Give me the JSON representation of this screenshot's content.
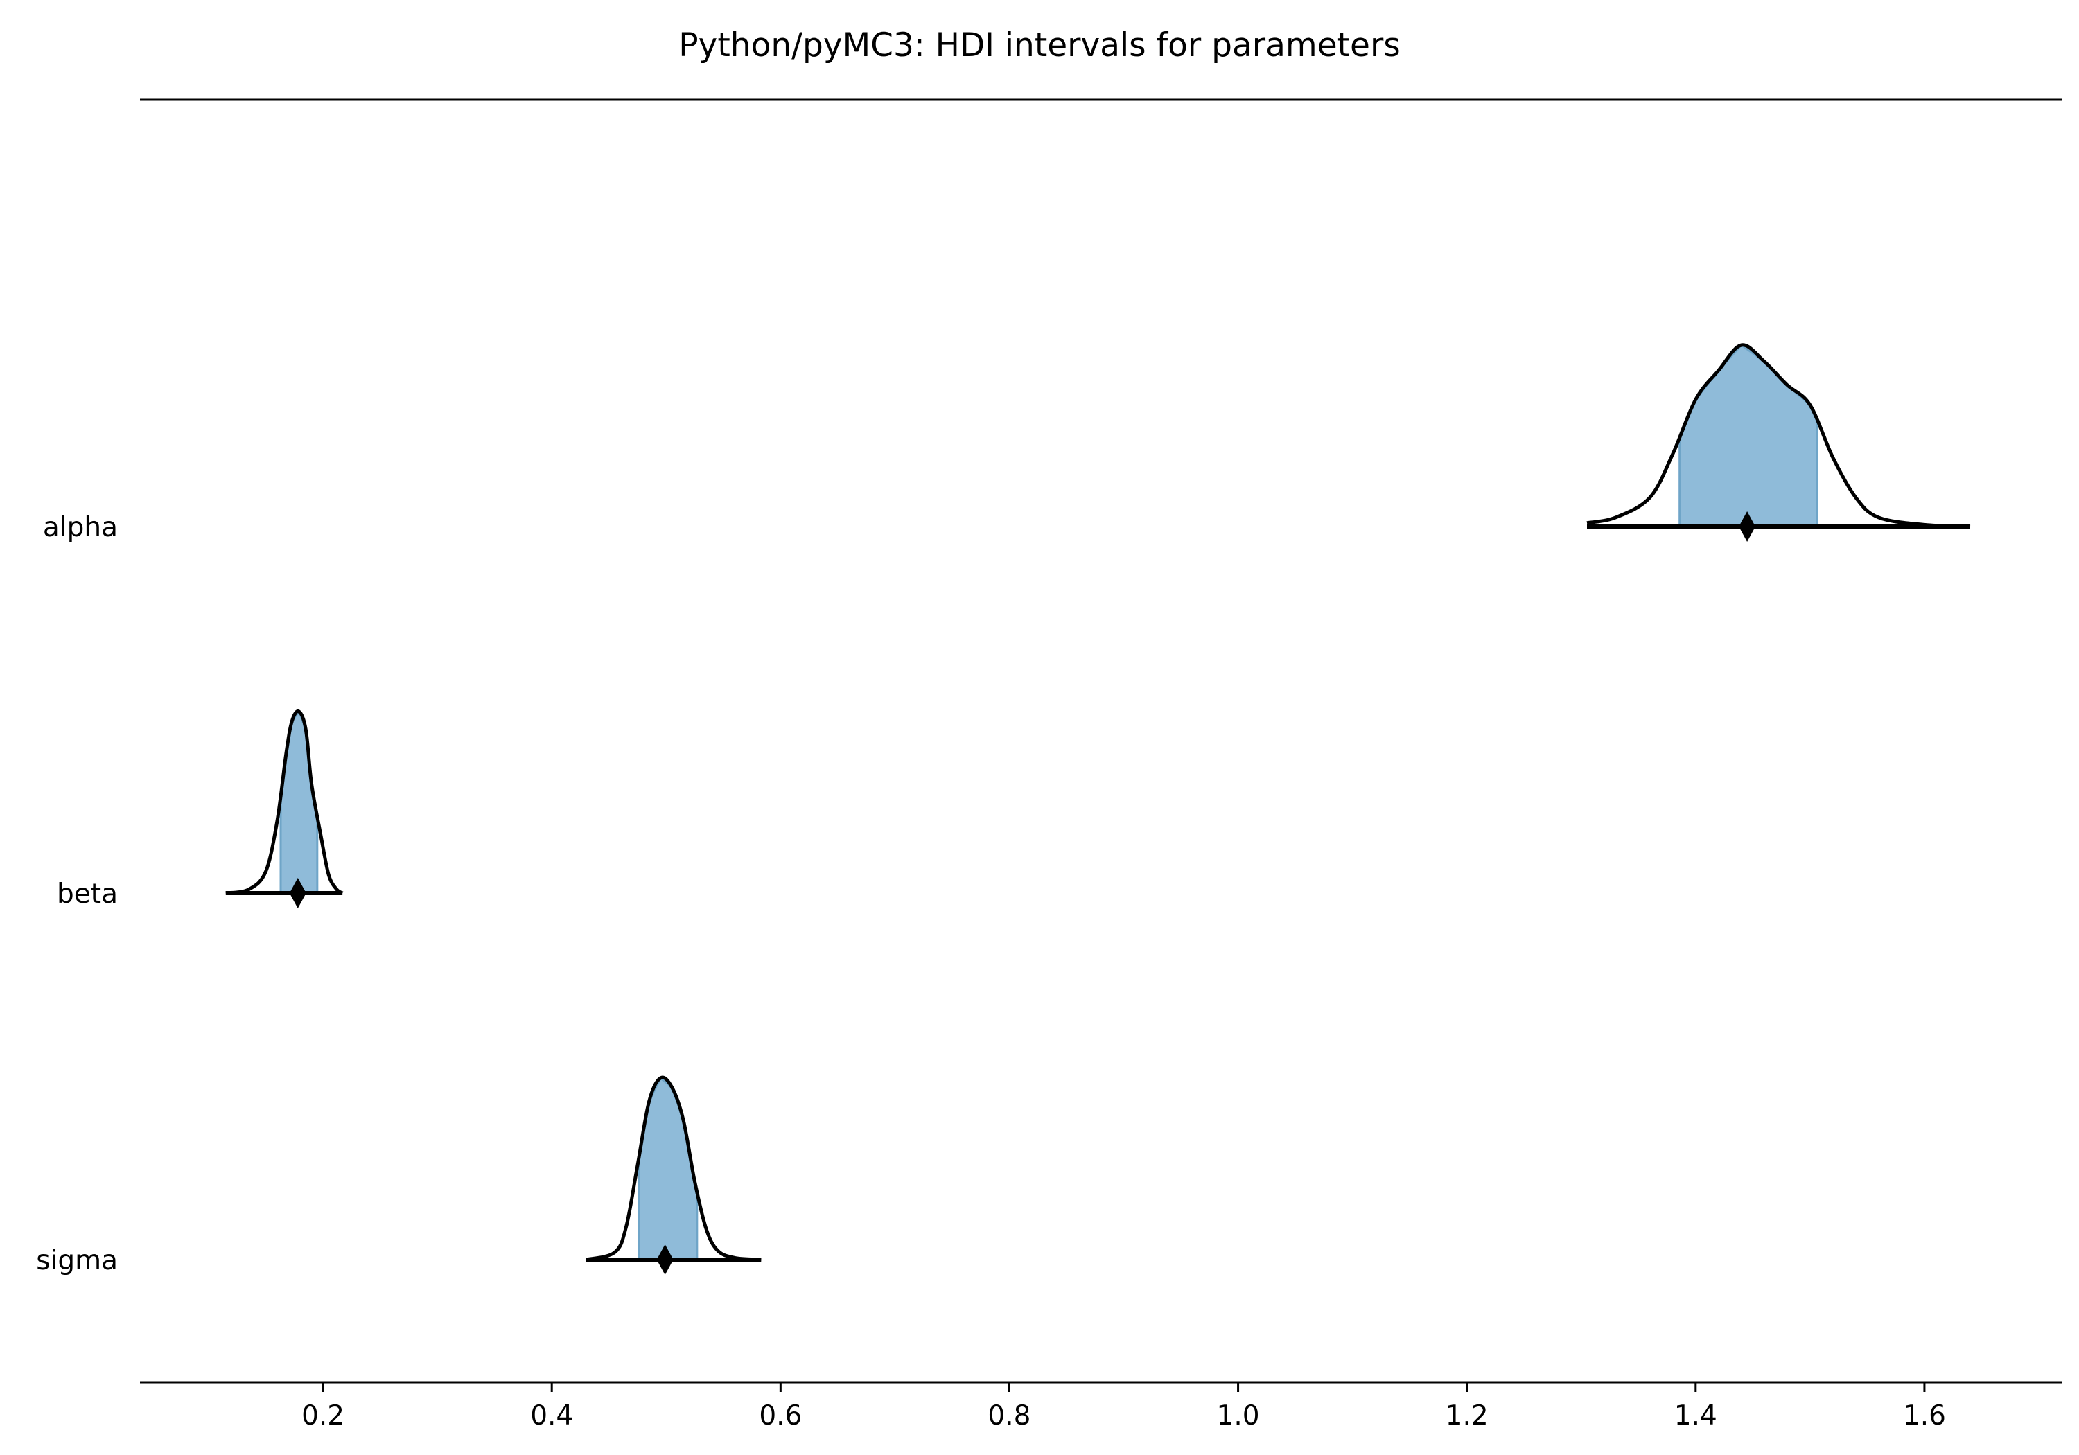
{
  "chart_data": {
    "type": "ridge-hdi",
    "title": "Python/pyMC3: HDI intervals for parameters",
    "xlabel": "",
    "ylabel": "",
    "xlim": [
      0.04,
      1.72
    ],
    "xticks": [
      0.2,
      0.4,
      0.6,
      0.8,
      1.0,
      1.2,
      1.4,
      1.6
    ],
    "xtick_labels": [
      "0.2",
      "0.4",
      "0.6",
      "0.8",
      "1.0",
      "1.2",
      "1.4",
      "1.6"
    ],
    "grid": false,
    "colors": {
      "fill": "#8fbbd9",
      "edge": "#6fa5c8",
      "line": "#000000"
    },
    "parameters": [
      {
        "name": "alpha",
        "point_estimate": 1.445,
        "hdi": [
          1.386,
          1.506
        ],
        "range": [
          1.305,
          1.64
        ],
        "density": [
          [
            1.305,
            0.02
          ],
          [
            1.33,
            0.05
          ],
          [
            1.36,
            0.16
          ],
          [
            1.38,
            0.4
          ],
          [
            1.4,
            0.7
          ],
          [
            1.42,
            0.86
          ],
          [
            1.44,
            1.0
          ],
          [
            1.46,
            0.91
          ],
          [
            1.48,
            0.78
          ],
          [
            1.5,
            0.67
          ],
          [
            1.52,
            0.38
          ],
          [
            1.54,
            0.16
          ],
          [
            1.56,
            0.05
          ],
          [
            1.6,
            0.01
          ],
          [
            1.64,
            0.0
          ]
        ]
      },
      {
        "name": "beta",
        "point_estimate": 0.178,
        "hdi": [
          0.163,
          0.195
        ],
        "range": [
          0.115,
          0.217
        ],
        "density": [
          [
            0.115,
            0.0
          ],
          [
            0.135,
            0.02
          ],
          [
            0.15,
            0.12
          ],
          [
            0.16,
            0.4
          ],
          [
            0.168,
            0.78
          ],
          [
            0.173,
            0.95
          ],
          [
            0.179,
            1.0
          ],
          [
            0.185,
            0.9
          ],
          [
            0.19,
            0.6
          ],
          [
            0.198,
            0.32
          ],
          [
            0.205,
            0.1
          ],
          [
            0.212,
            0.02
          ],
          [
            0.217,
            0.0
          ]
        ]
      },
      {
        "name": "sigma",
        "point_estimate": 0.499,
        "hdi": [
          0.476,
          0.527
        ],
        "range": [
          0.43,
          0.583
        ],
        "density": [
          [
            0.43,
            0.0
          ],
          [
            0.455,
            0.04
          ],
          [
            0.465,
            0.18
          ],
          [
            0.475,
            0.52
          ],
          [
            0.485,
            0.87
          ],
          [
            0.495,
            1.0
          ],
          [
            0.505,
            0.95
          ],
          [
            0.515,
            0.77
          ],
          [
            0.525,
            0.43
          ],
          [
            0.535,
            0.17
          ],
          [
            0.545,
            0.05
          ],
          [
            0.56,
            0.01
          ],
          [
            0.583,
            0.0
          ]
        ]
      }
    ]
  }
}
